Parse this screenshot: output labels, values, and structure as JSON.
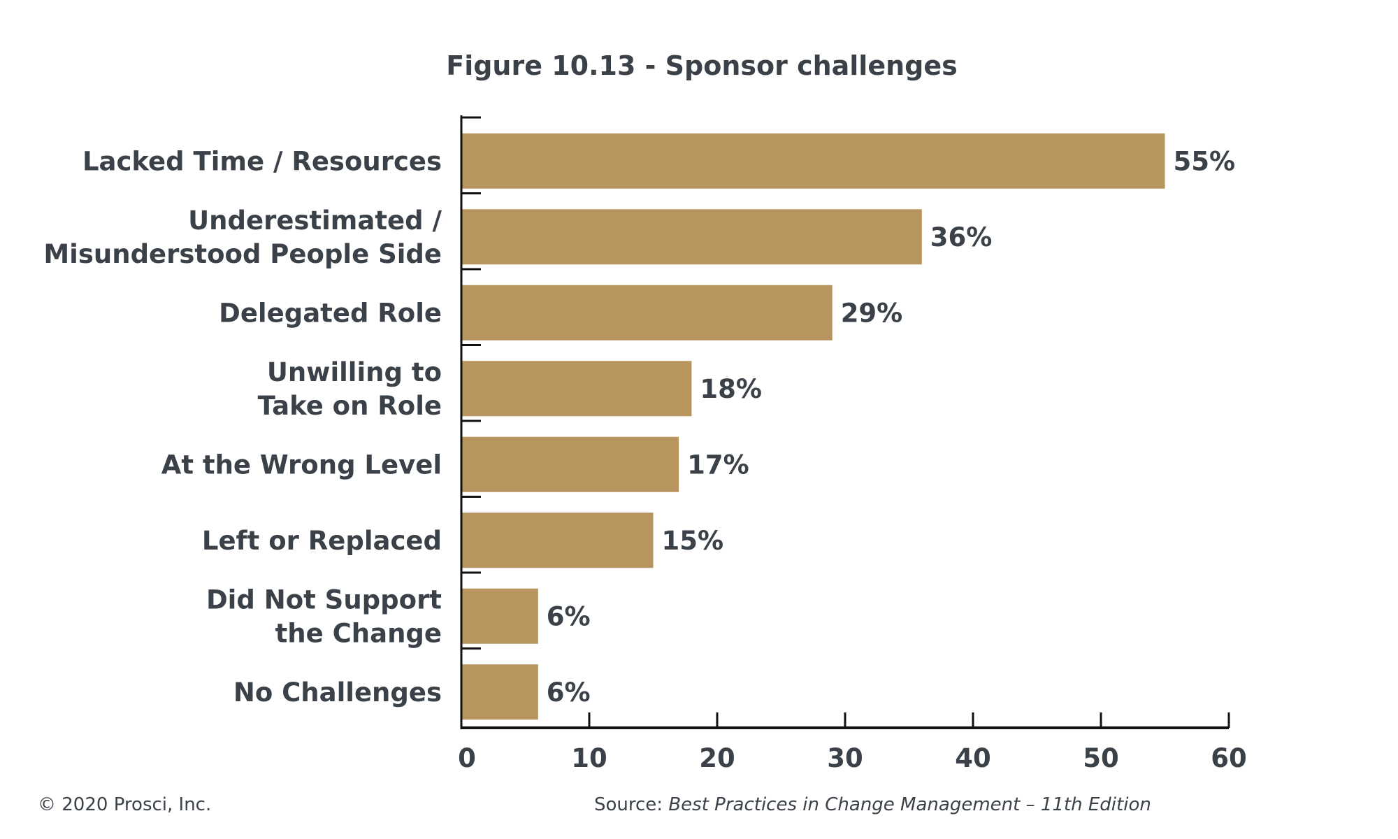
{
  "chart_data": {
    "type": "bar",
    "orientation": "horizontal",
    "title": "Figure 10.13 - Sponsor challenges",
    "categories": [
      [
        "Lacked Time / Resources"
      ],
      [
        "Underestimated /",
        "Misunderstood People Side"
      ],
      [
        "Delegated Role"
      ],
      [
        "Unwilling to",
        "Take on Role"
      ],
      [
        "At the Wrong Level"
      ],
      [
        "Left or Replaced"
      ],
      [
        "Did Not Support",
        "the Change"
      ],
      [
        "No Challenges"
      ]
    ],
    "values": [
      55,
      36,
      29,
      18,
      17,
      15,
      6,
      6
    ],
    "value_labels": [
      "55%",
      "36%",
      "29%",
      "18%",
      "17%",
      "15%",
      "6%",
      "6%"
    ],
    "xlim": [
      0,
      60
    ],
    "xticks": [
      "0",
      "10",
      "20",
      "30",
      "40",
      "50",
      "60"
    ],
    "grid": false,
    "bar_color": "#b8945f"
  },
  "footer": {
    "copyright": "© 2020 Prosci, Inc.",
    "source_prefix": "Source: ",
    "source_title": "Best Practices in Change Management – 11th Edition"
  }
}
